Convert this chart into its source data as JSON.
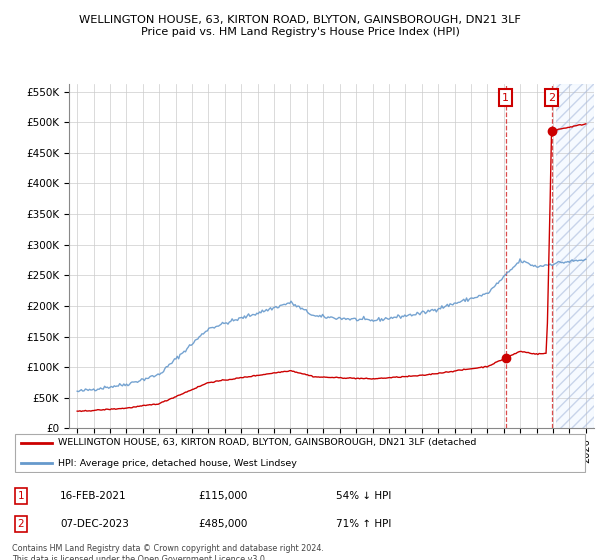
{
  "title1": "WELLINGTON HOUSE, 63, KIRTON ROAD, BLYTON, GAINSBOROUGH, DN21 3LF",
  "title2": "Price paid vs. HM Land Registry's House Price Index (HPI)",
  "ylim": [
    0,
    562500
  ],
  "yticks": [
    0,
    50000,
    100000,
    150000,
    200000,
    250000,
    300000,
    350000,
    400000,
    450000,
    500000,
    550000
  ],
  "ytick_labels": [
    "£0",
    "£50K",
    "£100K",
    "£150K",
    "£200K",
    "£250K",
    "£300K",
    "£350K",
    "£400K",
    "£450K",
    "£500K",
    "£550K"
  ],
  "xlim_start": 1994.5,
  "xlim_end": 2026.5,
  "background_color": "#ffffff",
  "grid_color": "#cccccc",
  "hpi_color": "#6699cc",
  "price_color": "#cc0000",
  "sale1_date": "16-FEB-2021",
  "sale1_price": 115000,
  "sale1_year": 2021.12,
  "sale1_pct": "54% ↓ HPI",
  "sale2_date": "07-DEC-2023",
  "sale2_price": 485000,
  "sale2_year": 2023.92,
  "sale2_pct": "71% ↑ HPI",
  "legend_line1": "WELLINGTON HOUSE, 63, KIRTON ROAD, BLYTON, GAINSBOROUGH, DN21 3LF (detached",
  "legend_line2": "HPI: Average price, detached house, West Lindsey",
  "footnote": "Contains HM Land Registry data © Crown copyright and database right 2024.\nThis data is licensed under the Open Government Licence v3.0.",
  "hatch_start": 2024.17,
  "hatch_color": "#ddeeff"
}
